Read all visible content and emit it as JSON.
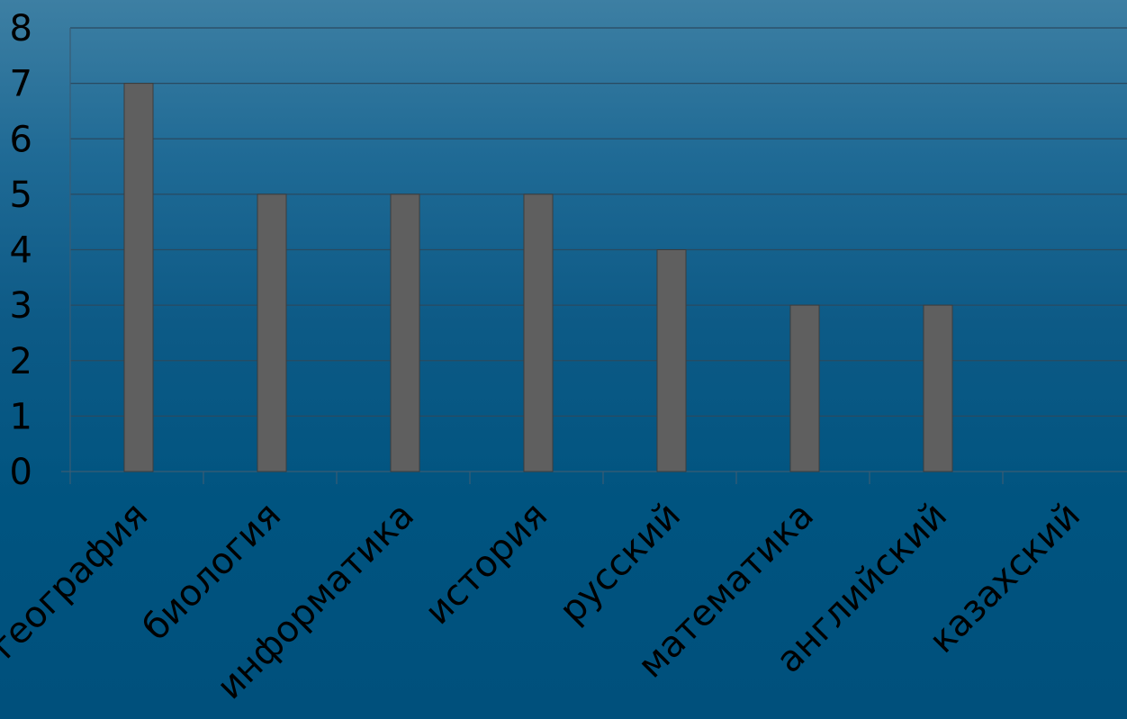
{
  "chart_data": {
    "type": "bar",
    "categories": [
      "география",
      "биология",
      "информатика",
      "история",
      "русский",
      "математика",
      "английский",
      "казахский"
    ],
    "series": [
      {
        "values": [
          7,
          5,
          5,
          5,
          4,
          3,
          3,
          0
        ]
      }
    ],
    "title": "",
    "xlabel": "",
    "ylabel": "",
    "ylim": [
      0,
      8
    ],
    "yticks": [
      "0",
      "1",
      "2",
      "3",
      "4",
      "5",
      "6",
      "7",
      "8"
    ],
    "grid": true,
    "legend": "none",
    "colors": {
      "bar": "#5f5f5f",
      "bar_edge": "#3c3c3c",
      "grid": "#2a4a60",
      "axis": "#3a5c74",
      "text": "#000000"
    }
  }
}
